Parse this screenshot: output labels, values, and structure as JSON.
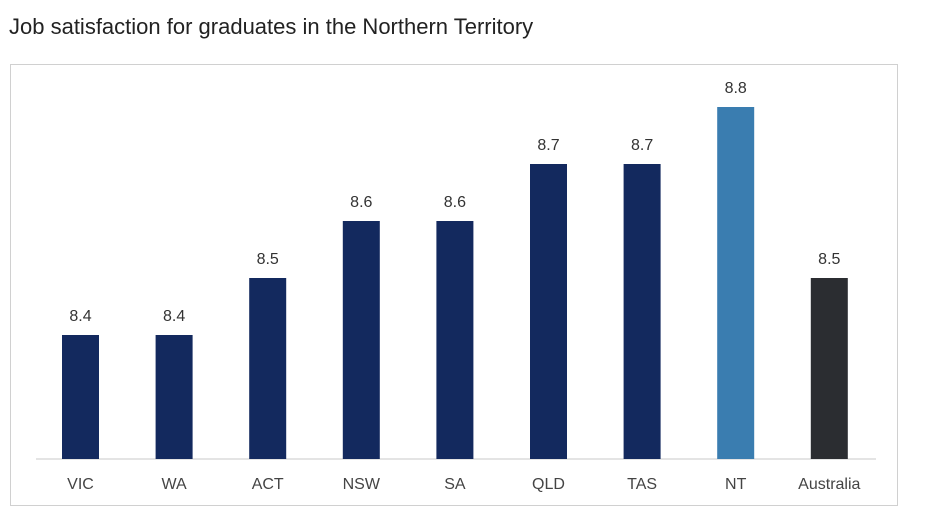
{
  "title": "Job satisfaction for graduates in the Northern Territory",
  "chart_data": {
    "type": "bar",
    "title": "Job satisfaction for graduates in the Northern Territory",
    "xlabel": "",
    "ylabel": "",
    "categories": [
      "VIC",
      "WA",
      "ACT",
      "NSW",
      "SA",
      "QLD",
      "TAS",
      "NT",
      "Australia"
    ],
    "values": [
      8.4,
      8.4,
      8.5,
      8.6,
      8.6,
      8.7,
      8.7,
      8.8,
      8.5
    ],
    "colors": [
      "#13295e",
      "#13295e",
      "#13295e",
      "#13295e",
      "#13295e",
      "#13295e",
      "#13295e",
      "#3a7db0",
      "#2b2d31"
    ],
    "grid": false,
    "legend": "none"
  }
}
